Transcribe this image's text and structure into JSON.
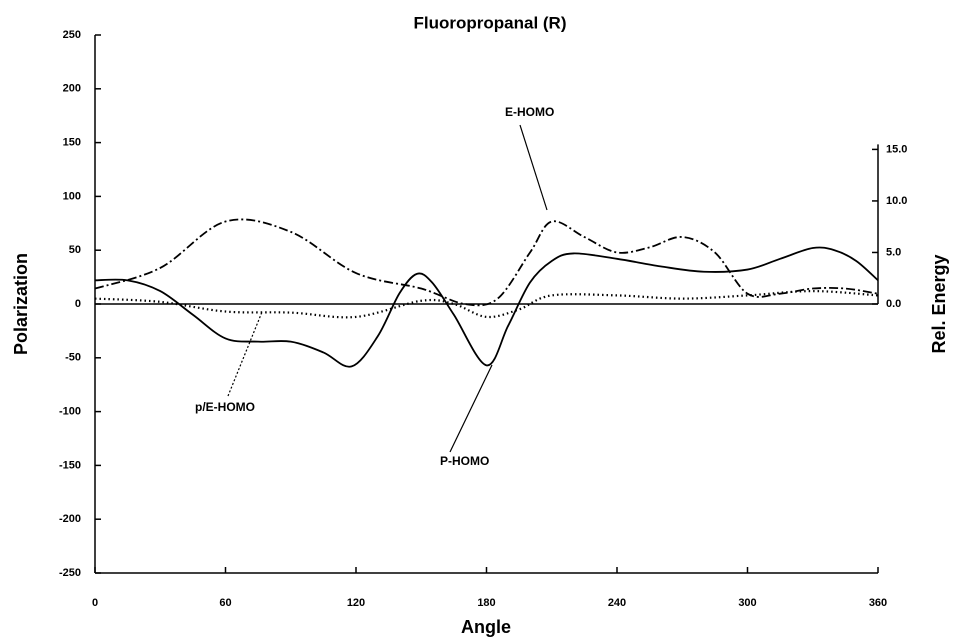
{
  "chart_data": {
    "type": "line",
    "title": "Fluoropropanal (R)",
    "x_label": "Angle",
    "y_label": "Polarization",
    "y2_label": "Rel. Energy",
    "xlim": [
      0,
      360
    ],
    "xticks": [
      0,
      60,
      120,
      180,
      240,
      300,
      360
    ],
    "ylim": [
      -250,
      250
    ],
    "yticks": [
      -250,
      -200,
      -150,
      -100,
      -50,
      0,
      50,
      100,
      150,
      200,
      250
    ],
    "y2lim": [
      -26.1,
      26.1
    ],
    "y2ticks": [
      {
        "value": 0,
        "label": "0.0"
      },
      {
        "value": 5,
        "label": "5.0"
      },
      {
        "value": 10,
        "label": "10.0"
      },
      {
        "value": 15,
        "label": "15.0"
      }
    ],
    "series": [
      {
        "name": "P-HOMO",
        "color": "#000000",
        "style": "solid",
        "x": [
          0,
          15,
          30,
          45,
          60,
          75,
          90,
          105,
          118,
          130,
          140,
          148,
          155,
          165,
          180,
          190,
          200,
          210,
          220,
          240,
          260,
          280,
          300,
          315,
          330,
          340,
          350,
          360
        ],
        "values": [
          22,
          22,
          12,
          -10,
          -32,
          -35,
          -35,
          -45,
          -58,
          -30,
          10,
          28,
          20,
          -10,
          -57,
          -20,
          20,
          40,
          47,
          42,
          35,
          30,
          32,
          42,
          52,
          50,
          40,
          22
        ]
      },
      {
        "name": "p/E-HOMO",
        "color": "#000000",
        "style": "dotted",
        "x": [
          0,
          30,
          60,
          90,
          120,
          150,
          165,
          180,
          195,
          210,
          240,
          270,
          300,
          330,
          360
        ],
        "values": [
          5,
          2,
          -7,
          -8,
          -12,
          3,
          0,
          -12,
          -5,
          8,
          8,
          5,
          8,
          12,
          8
        ]
      },
      {
        "name": "E-HOMO",
        "color": "#000000",
        "style": "dashdot",
        "axis": "y2",
        "x": [
          0,
          30,
          60,
          90,
          120,
          150,
          170,
          185,
          200,
          210,
          225,
          240,
          255,
          270,
          285,
          300,
          315,
          330,
          345,
          360
        ],
        "values": [
          1.5,
          3.5,
          8.0,
          7.0,
          3.0,
          1.5,
          0,
          0.5,
          5.0,
          8.0,
          6.5,
          5.0,
          5.5,
          6.5,
          5.0,
          1.0,
          1.0,
          1.5,
          1.5,
          1.0
        ]
      }
    ]
  }
}
